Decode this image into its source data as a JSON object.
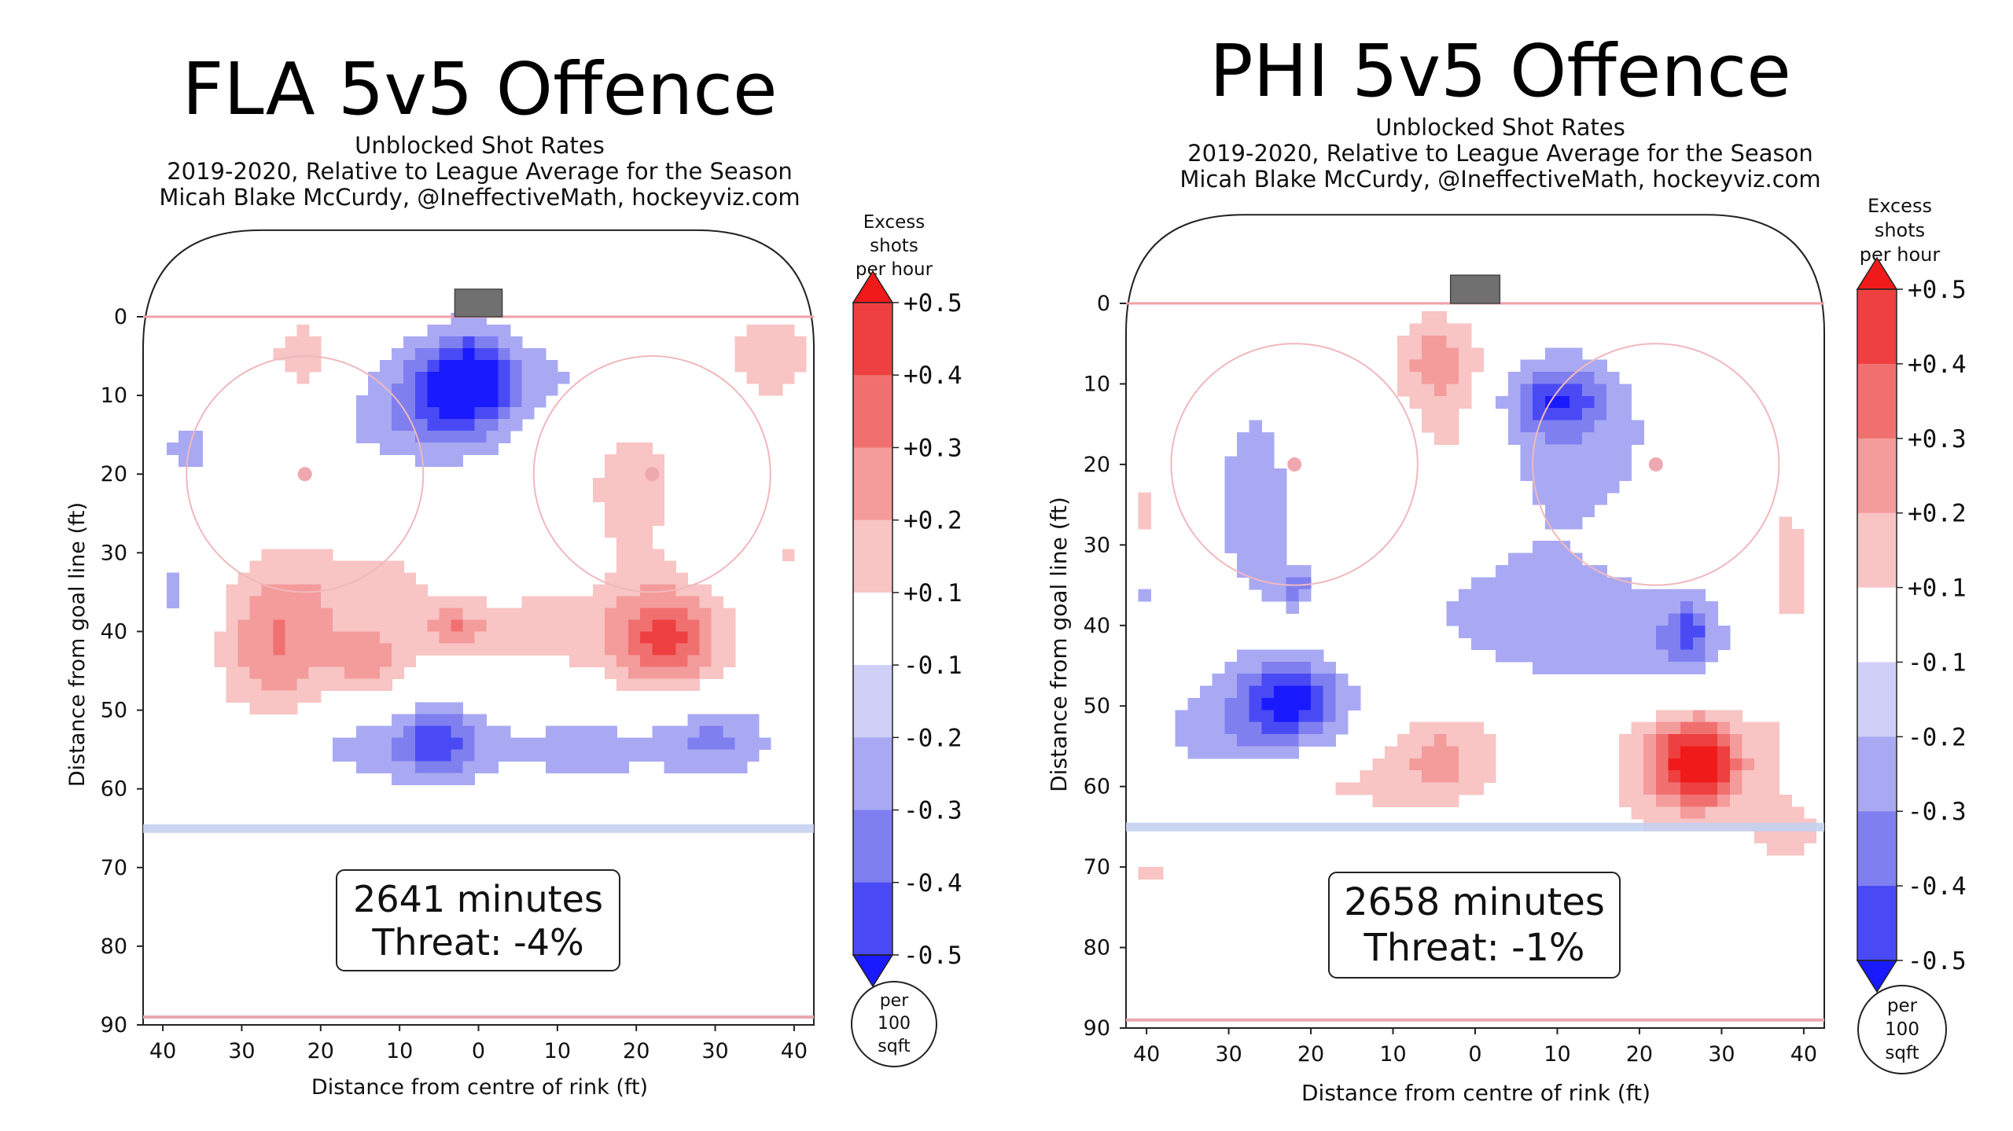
{
  "chart_data": [
    {
      "type": "heatmap",
      "title": "FLA 5v5 Offence",
      "subtitle_lines": [
        "Unblocked Shot Rates",
        "2019-2020, Relative to League Average for the Season",
        "Micah Blake McCurdy, @IneffectiveMath, hockeyviz.com"
      ],
      "xlabel": "Distance from centre of rink (ft)",
      "ylabel": "Distance from goal line (ft)",
      "xlim": [
        -42.5,
        42.5
      ],
      "ylim": [
        90,
        -11
      ],
      "x_ticks": [
        -40,
        -30,
        -20,
        -10,
        0,
        10,
        20,
        30,
        40
      ],
      "x_tick_labels": [
        "40",
        "30",
        "20",
        "10",
        "0",
        "10",
        "20",
        "30",
        "40"
      ],
      "y_ticks": [
        0,
        10,
        20,
        30,
        40,
        50,
        60,
        70,
        80,
        90
      ],
      "y_tick_labels": [
        "0",
        "10",
        "20",
        "30",
        "40",
        "50",
        "60",
        "70",
        "80",
        "90"
      ],
      "summary_lines": [
        "2641 minutes",
        "Threat: -4%"
      ],
      "hotspots": [
        {
          "x": -22,
          "y": 5,
          "value": 0.15,
          "sx": 4,
          "sy": 4
        },
        {
          "x": 37,
          "y": 5,
          "value": 0.15,
          "sx": 5,
          "sy": 5
        },
        {
          "x": -1,
          "y": 8,
          "value": -0.48,
          "sx": 4.5,
          "sy": 4.5
        },
        {
          "x": -8,
          "y": 12,
          "value": -0.2,
          "sx": 7,
          "sy": 5
        },
        {
          "x": 15,
          "y": 8,
          "value": -0.12,
          "sx": 6,
          "sy": 4
        },
        {
          "x": 20,
          "y": 22,
          "value": 0.14,
          "sx": 6,
          "sy": 9
        },
        {
          "x": -37,
          "y": 17,
          "value": -0.12,
          "sx": 3,
          "sy": 4
        },
        {
          "x": 31,
          "y": 24,
          "value": -0.12,
          "sx": 4,
          "sy": 5
        },
        {
          "x": -38,
          "y": 35,
          "value": -0.12,
          "sx": 3,
          "sy": 6
        },
        {
          "x": 39,
          "y": 30,
          "value": 0.12,
          "sx": 2,
          "sy": 2
        },
        {
          "x": -2,
          "y": 30,
          "value": -0.12,
          "sx": 3,
          "sy": 3
        },
        {
          "x": -26,
          "y": 42,
          "value": 0.28,
          "sx": 5,
          "sy": 7
        },
        {
          "x": -14,
          "y": 35,
          "value": 0.14,
          "sx": 9,
          "sy": 5
        },
        {
          "x": -14,
          "y": 44,
          "value": 0.22,
          "sx": 3.5,
          "sy": 3
        },
        {
          "x": -3,
          "y": 40,
          "value": 0.22,
          "sx": 2.5,
          "sy": 2
        },
        {
          "x": 8,
          "y": 40,
          "value": 0.14,
          "sx": 8,
          "sy": 4
        },
        {
          "x": 24,
          "y": 41,
          "value": 0.42,
          "sx": 5,
          "sy": 4.5
        },
        {
          "x": -10,
          "y": 55,
          "value": -0.14,
          "sx": 14,
          "sy": 3.5
        },
        {
          "x": -5,
          "y": 54,
          "value": -0.26,
          "sx": 3.5,
          "sy": 3
        },
        {
          "x": 30,
          "y": 54,
          "value": -0.22,
          "sx": 5,
          "sy": 3.5
        },
        {
          "x": 15,
          "y": 55,
          "value": -0.12,
          "sx": 6,
          "sy": 3
        }
      ]
    },
    {
      "type": "heatmap",
      "title": "PHI 5v5 Offence",
      "subtitle_lines": [
        "Unblocked Shot Rates",
        "2019-2020, Relative to League Average for the Season",
        "Micah Blake McCurdy, @IneffectiveMath, hockeyviz.com"
      ],
      "xlabel": "Distance from centre of rink (ft)",
      "ylabel": "Distance from goal line (ft)",
      "xlim": [
        -42.5,
        42.5
      ],
      "ylim": [
        90,
        -11
      ],
      "x_ticks": [
        -40,
        -30,
        -20,
        -10,
        0,
        10,
        20,
        30,
        40
      ],
      "x_tick_labels": [
        "40",
        "30",
        "20",
        "10",
        "0",
        "10",
        "20",
        "30",
        "40"
      ],
      "y_ticks": [
        0,
        10,
        20,
        30,
        40,
        50,
        60,
        70,
        80,
        90
      ],
      "y_tick_labels": [
        "0",
        "10",
        "20",
        "30",
        "40",
        "50",
        "60",
        "70",
        "80",
        "90"
      ],
      "summary_lines": [
        "2658 minutes",
        "Threat: -1%"
      ],
      "hotspots": [
        {
          "x": -5,
          "y": 7,
          "value": 0.2,
          "sx": 4,
          "sy": 4
        },
        {
          "x": -3,
          "y": 18,
          "value": 0.13,
          "sx": 4,
          "sy": 10
        },
        {
          "x": -22,
          "y": 1,
          "value": 0.12,
          "sx": 1.5,
          "sy": 1.2
        },
        {
          "x": 32,
          "y": 4,
          "value": 0.12,
          "sx": 1.5,
          "sy": 1.2
        },
        {
          "x": 10,
          "y": 12,
          "value": -0.3,
          "sx": 4,
          "sy": 3
        },
        {
          "x": 12,
          "y": 18,
          "value": -0.14,
          "sx": 9,
          "sy": 9
        },
        {
          "x": -27,
          "y": 25,
          "value": -0.13,
          "sx": 5,
          "sy": 14
        },
        {
          "x": -22,
          "y": 49,
          "value": -0.36,
          "sx": 4,
          "sy": 3
        },
        {
          "x": -28,
          "y": 53,
          "value": -0.18,
          "sx": 8,
          "sy": 5
        },
        {
          "x": 3,
          "y": 38,
          "value": -0.13,
          "sx": 10,
          "sy": 6
        },
        {
          "x": 21,
          "y": 42,
          "value": -0.14,
          "sx": 10,
          "sy": 5
        },
        {
          "x": 26,
          "y": 41,
          "value": -0.24,
          "sx": 2,
          "sy": 3
        },
        {
          "x": -22,
          "y": 35,
          "value": -0.22,
          "sx": 1.5,
          "sy": 1.5
        },
        {
          "x": -40,
          "y": 36,
          "value": -0.12,
          "sx": 2,
          "sy": 1.5
        },
        {
          "x": 38,
          "y": 36,
          "value": 0.13,
          "sx": 3,
          "sy": 14
        },
        {
          "x": -40,
          "y": 26,
          "value": 0.12,
          "sx": 2,
          "sy": 4
        },
        {
          "x": -4,
          "y": 56,
          "value": 0.22,
          "sx": 5,
          "sy": 4
        },
        {
          "x": -18,
          "y": 60,
          "value": 0.12,
          "sx": 10,
          "sy": 3
        },
        {
          "x": 27,
          "y": 57,
          "value": 0.5,
          "sx": 3.5,
          "sy": 3.5
        },
        {
          "x": 25,
          "y": 58,
          "value": 0.16,
          "sx": 8,
          "sy": 7
        },
        {
          "x": 38,
          "y": 66,
          "value": 0.13,
          "sx": 3,
          "sy": 3
        },
        {
          "x": -40,
          "y": 71,
          "value": 0.14,
          "sx": 2,
          "sy": 1.5
        }
      ]
    }
  ],
  "colorbar": {
    "title_lines": [
      "Excess",
      "shots",
      "per hour"
    ],
    "boundaries": [
      -0.5,
      -0.4,
      -0.3,
      -0.2,
      -0.1,
      0.1,
      0.2,
      0.3,
      0.4,
      0.5
    ],
    "tick_labels": [
      "+0.5",
      "+0.4",
      "+0.3",
      "+0.2",
      "+0.1",
      "-0.1",
      "-0.2",
      "-0.3",
      "-0.4",
      "-0.5"
    ],
    "unit_lines": [
      "per",
      "100",
      "sqft"
    ],
    "colors": [
      "#1a1aff",
      "#4a4af5",
      "#7f7ff0",
      "#a9a9f3",
      "#cfcff8",
      "#ffffff",
      "#f8c4c4",
      "#f49b9b",
      "#f07070",
      "#ee4040",
      "#f01a1a"
    ]
  }
}
